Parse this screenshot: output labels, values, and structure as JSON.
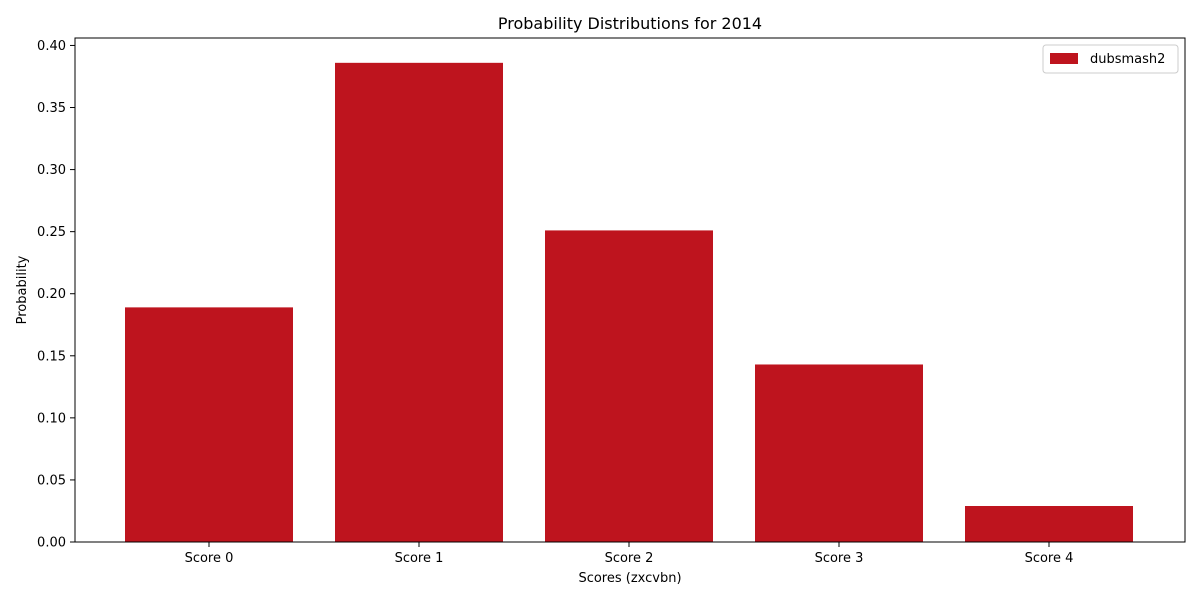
{
  "chart_data": {
    "type": "bar",
    "title": "Probability Distributions for 2014",
    "xlabel": "Scores (zxcvbn)",
    "ylabel": "Probability",
    "categories": [
      "Score 0",
      "Score 1",
      "Score 2",
      "Score 3",
      "Score 4"
    ],
    "series": [
      {
        "name": "dubsmash2",
        "color": "#be141e",
        "values": [
          0.189,
          0.386,
          0.251,
          0.143,
          0.029
        ]
      }
    ],
    "ylim": [
      0,
      0.406
    ],
    "yticks": [
      0.0,
      0.05,
      0.1,
      0.15,
      0.2,
      0.25,
      0.3,
      0.35,
      0.4
    ],
    "ytick_labels": [
      "0.00",
      "0.05",
      "0.10",
      "0.15",
      "0.20",
      "0.25",
      "0.30",
      "0.35",
      "0.40"
    ],
    "grid": false,
    "legend_position": "top-right"
  }
}
